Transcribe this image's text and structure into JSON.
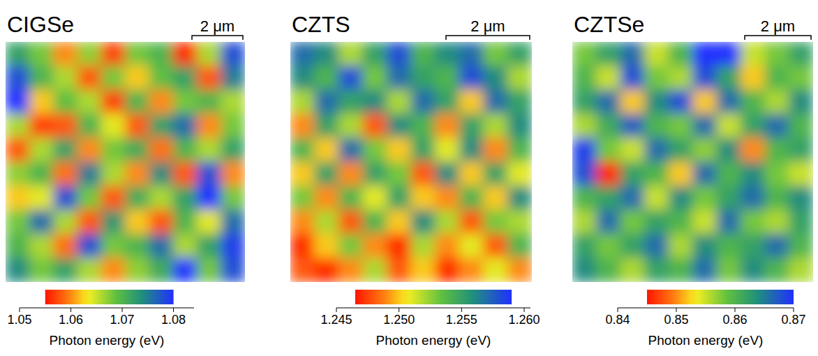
{
  "chart_data": [
    {
      "type": "heatmap",
      "title": "CIGSe",
      "scale_bar": "2 μm",
      "cells": [
        [
          1.072,
          1.068,
          1.06,
          1.067,
          1.057,
          1.068,
          1.07,
          1.056,
          1.066,
          1.078
        ],
        [
          1.078,
          1.07,
          1.066,
          1.058,
          1.068,
          1.062,
          1.069,
          1.072,
          1.058,
          1.075
        ],
        [
          1.08,
          1.062,
          1.069,
          1.066,
          1.057,
          1.07,
          1.06,
          1.068,
          1.07,
          1.066
        ],
        [
          1.066,
          1.057,
          1.058,
          1.07,
          1.064,
          1.058,
          1.072,
          1.076,
          1.06,
          1.068
        ],
        [
          1.058,
          1.066,
          1.072,
          1.06,
          1.068,
          1.071,
          1.059,
          1.07,
          1.066,
          1.072
        ],
        [
          1.067,
          1.07,
          1.059,
          1.075,
          1.066,
          1.06,
          1.074,
          1.058,
          1.078,
          1.06
        ],
        [
          1.062,
          1.064,
          1.078,
          1.068,
          1.058,
          1.071,
          1.066,
          1.072,
          1.08,
          1.068
        ],
        [
          1.068,
          1.076,
          1.066,
          1.058,
          1.073,
          1.062,
          1.058,
          1.07,
          1.064,
          1.076
        ],
        [
          1.07,
          1.066,
          1.059,
          1.078,
          1.068,
          1.07,
          1.076,
          1.066,
          1.072,
          1.079
        ],
        [
          1.074,
          1.068,
          1.072,
          1.066,
          1.06,
          1.067,
          1.071,
          1.08,
          1.068,
          1.078
        ]
      ],
      "color_range": [
        1.055,
        1.08
      ],
      "colorbar_lim": [
        1.05,
        1.084
      ],
      "colorbar_ticks": [
        1.05,
        1.06,
        1.07,
        1.08
      ],
      "colorbar_label": "Photon energy (eV)"
    },
    {
      "type": "heatmap",
      "title": "CZTS",
      "scale_bar": "2 μm",
      "cells": [
        [
          1.257,
          1.256,
          1.252,
          1.255,
          1.258,
          1.254,
          1.256,
          1.257,
          1.253,
          1.255
        ],
        [
          1.256,
          1.254,
          1.258,
          1.253,
          1.257,
          1.255,
          1.254,
          1.258,
          1.256,
          1.252
        ],
        [
          1.252,
          1.257,
          1.255,
          1.256,
          1.252,
          1.257,
          1.255,
          1.25,
          1.257,
          1.255
        ],
        [
          1.249,
          1.255,
          1.252,
          1.248,
          1.256,
          1.254,
          1.249,
          1.255,
          1.252,
          1.256
        ],
        [
          1.254,
          1.25,
          1.257,
          1.253,
          1.25,
          1.255,
          1.251,
          1.256,
          1.249,
          1.254
        ],
        [
          1.25,
          1.255,
          1.249,
          1.255,
          1.253,
          1.248,
          1.256,
          1.25,
          1.255,
          1.251
        ],
        [
          1.253,
          1.249,
          1.254,
          1.251,
          1.255,
          1.25,
          1.249,
          1.254,
          1.25,
          1.256
        ],
        [
          1.249,
          1.252,
          1.248,
          1.254,
          1.25,
          1.256,
          1.252,
          1.248,
          1.253,
          1.252
        ],
        [
          1.247,
          1.25,
          1.253,
          1.249,
          1.247,
          1.252,
          1.249,
          1.251,
          1.248,
          1.254
        ],
        [
          1.248,
          1.247,
          1.249,
          1.252,
          1.248,
          1.25,
          1.247,
          1.249,
          1.251,
          1.249
        ]
      ],
      "color_range": [
        1.2465,
        1.259
      ],
      "colorbar_lim": [
        1.245,
        1.2605
      ],
      "colorbar_ticks": [
        1.245,
        {
          "value": 1.25,
          "label": "1.250"
        },
        1.255,
        {
          "value": 1.26,
          "label": "1.260"
        }
      ],
      "colorbar_label": "Photon energy (eV)"
    },
    {
      "type": "heatmap",
      "title": "CZTSe",
      "scale_bar": "2 μm",
      "cells": [
        [
          0.858,
          0.862,
          0.866,
          0.855,
          0.86,
          0.87,
          0.87,
          0.855,
          0.858,
          0.862
        ],
        [
          0.86,
          0.855,
          0.868,
          0.858,
          0.856,
          0.868,
          0.862,
          0.852,
          0.86,
          0.858
        ],
        [
          0.862,
          0.866,
          0.852,
          0.864,
          0.868,
          0.852,
          0.866,
          0.86,
          0.856,
          0.864
        ],
        [
          0.856,
          0.861,
          0.867,
          0.86,
          0.858,
          0.866,
          0.855,
          0.862,
          0.866,
          0.86
        ],
        [
          0.869,
          0.858,
          0.855,
          0.866,
          0.862,
          0.857,
          0.864,
          0.85,
          0.86,
          0.862
        ],
        [
          0.868,
          0.846,
          0.862,
          0.86,
          0.852,
          0.866,
          0.86,
          0.864,
          0.858,
          0.855
        ],
        [
          0.86,
          0.862,
          0.866,
          0.855,
          0.864,
          0.858,
          0.862,
          0.866,
          0.86,
          0.864
        ],
        [
          0.856,
          0.866,
          0.858,
          0.862,
          0.86,
          0.855,
          0.866,
          0.858,
          0.856,
          0.862
        ],
        [
          0.862,
          0.858,
          0.862,
          0.866,
          0.856,
          0.864,
          0.86,
          0.862,
          0.866,
          0.86
        ],
        [
          0.864,
          0.86,
          0.856,
          0.862,
          0.86,
          0.866,
          0.858,
          0.864,
          0.86,
          0.856
        ]
      ],
      "color_range": [
        0.845,
        0.87
      ],
      "colorbar_lim": [
        0.84,
        0.87
      ],
      "colorbar_ticks": [
        0.84,
        0.85,
        0.86,
        0.87
      ],
      "colorbar_label": "Photon energy (eV)"
    }
  ]
}
